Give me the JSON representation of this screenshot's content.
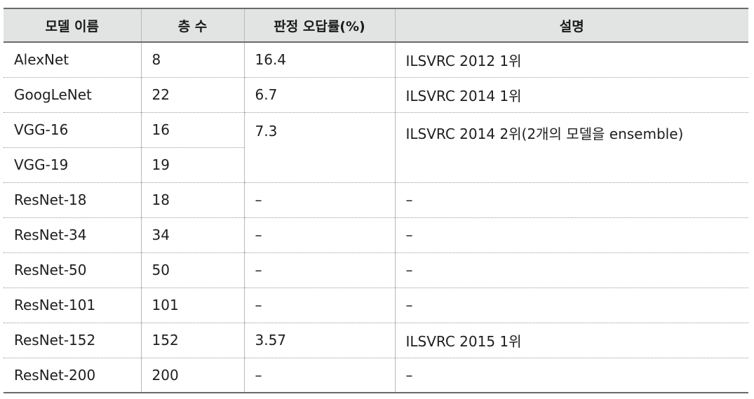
{
  "table": {
    "headers": [
      "모델 이름",
      "층 수",
      "판정 오답률(%)",
      "설명"
    ],
    "rows": [
      {
        "model": "AlexNet",
        "layers": "8",
        "error": "16.4",
        "desc": "ILSVRC 2012 1위"
      },
      {
        "model": "GoogLeNet",
        "layers": "22",
        "error": "6.7",
        "desc": "ILSVRC 2014 1위"
      },
      {
        "model": "VGG-16",
        "layers": "16",
        "error": "7.3",
        "desc": "ILSVRC 2014 2위(2개의 모델을 ensemble)"
      },
      {
        "model": "VGG-19",
        "layers": "19"
      },
      {
        "model": "ResNet-18",
        "layers": "18",
        "error": "–",
        "desc": "–"
      },
      {
        "model": "ResNet-34",
        "layers": "34",
        "error": "–",
        "desc": "–"
      },
      {
        "model": "ResNet-50",
        "layers": "50",
        "error": "–",
        "desc": "–"
      },
      {
        "model": "ResNet-101",
        "layers": "101",
        "error": "–",
        "desc": "–"
      },
      {
        "model": "ResNet-152",
        "layers": "152",
        "error": "3.57",
        "desc": "ILSVRC 2015 1위"
      },
      {
        "model": "ResNet-200",
        "layers": "200",
        "error": "–",
        "desc": "–"
      }
    ]
  }
}
